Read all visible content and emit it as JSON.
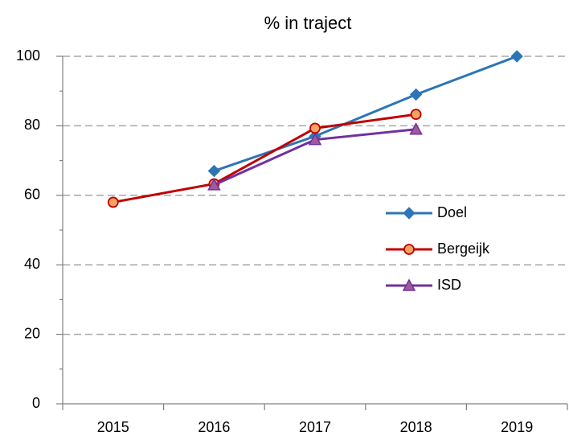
{
  "chart_data": {
    "type": "line",
    "title": "% in traject",
    "categories": [
      "2015",
      "2016",
      "2017",
      "2018",
      "2019"
    ],
    "series": [
      {
        "name": "Doel",
        "color": "#2e75b6",
        "values": [
          null,
          67,
          77,
          89,
          100
        ]
      },
      {
        "name": "Bergeijk",
        "color": "#c00000",
        "values": [
          58,
          63.3,
          79.3,
          83.3,
          null
        ]
      },
      {
        "name": "ISD",
        "color": "#7030a0",
        "values": [
          null,
          63,
          76,
          79,
          null
        ]
      }
    ],
    "ylim": [
      0,
      100
    ],
    "yticks": [
      0,
      20,
      40,
      60,
      80,
      100
    ],
    "grid": true,
    "legend": "right"
  }
}
